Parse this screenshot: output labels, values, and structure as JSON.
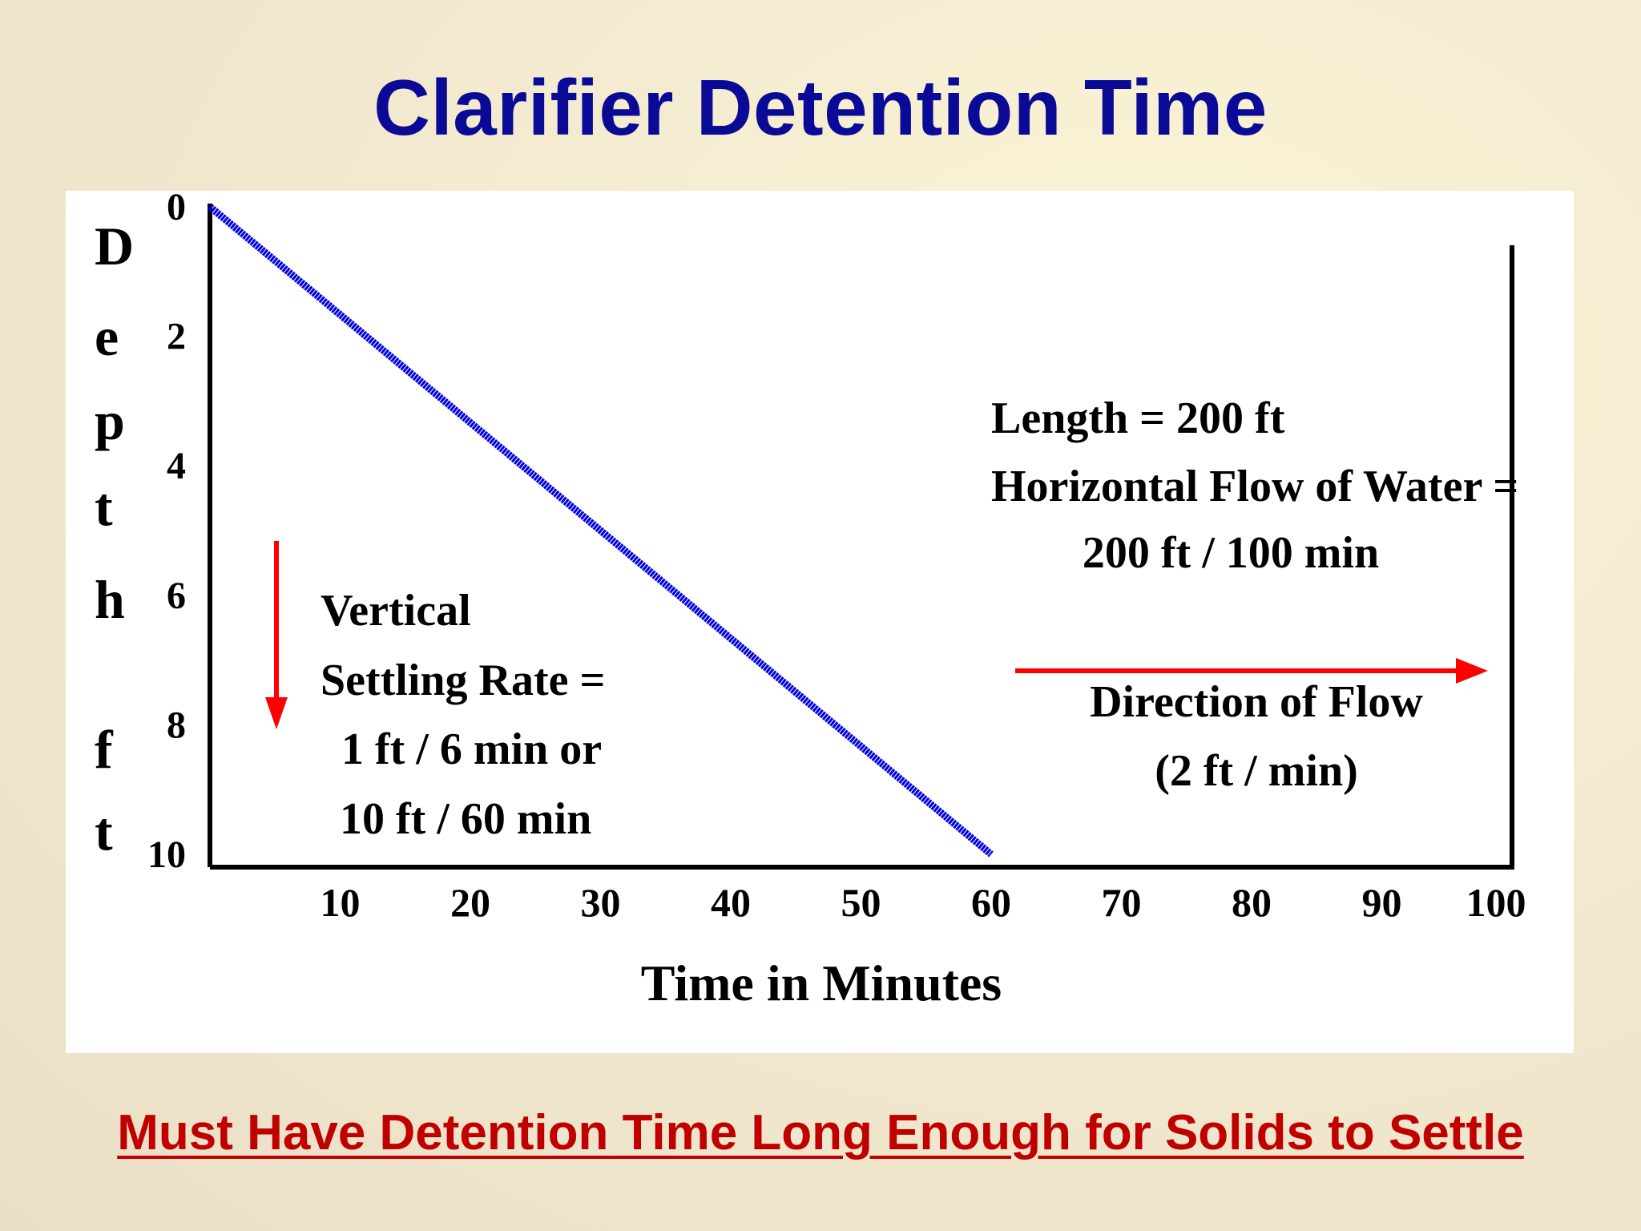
{
  "title": "Clarifier Detention Time",
  "footer": "Must Have Detention Time Long Enough for Solids to Settle",
  "colors": {
    "title": "#0a0a96",
    "footer": "#c00000",
    "settling_line": "#0000e6",
    "arrow": "#ff0000",
    "axis": "#000000"
  },
  "chart_data": {
    "type": "line",
    "title": "Clarifier Detention Time",
    "xlabel": "Time in Minutes",
    "ylabel_letters": [
      "D",
      "e",
      "p",
      "t",
      "h",
      "",
      "f",
      "t"
    ],
    "x_ticks": [
      "10",
      "20",
      "30",
      "40",
      "50",
      "60",
      "70",
      "80",
      "90",
      "100"
    ],
    "y_ticks": [
      "0",
      "2",
      "4",
      "6",
      "8",
      "10"
    ],
    "xlim": [
      0,
      100
    ],
    "ylim": [
      10,
      0
    ],
    "series": [
      {
        "x": [
          0,
          60
        ],
        "y": [
          0,
          10
        ]
      }
    ],
    "annotations": {
      "vertical": {
        "lines": [
          "Vertical",
          "Settling Rate =",
          "1 ft / 6 min or",
          "10 ft / 60 min"
        ]
      },
      "horizontal": {
        "lines": [
          "Length = 200 ft",
          "Horizontal Flow of Water =",
          "200 ft / 100 min"
        ]
      },
      "flow": {
        "lines": [
          "Direction of Flow",
          "(2 ft / min)"
        ]
      }
    },
    "grid": false
  }
}
